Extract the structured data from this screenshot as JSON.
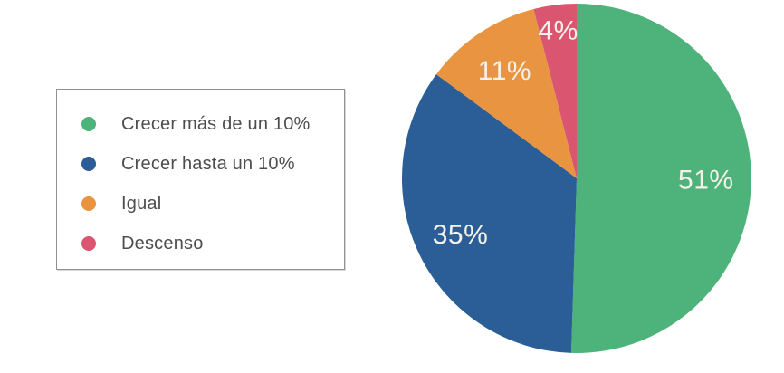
{
  "chart_data": {
    "type": "pie",
    "title": "",
    "legend_position": "left",
    "start_angle_deg": -90,
    "direction": "clockwise",
    "label_color": "#F6F2EA",
    "legend_text_color": "#4d4d4d",
    "slices": [
      {
        "label": "Crecer más de un 10%",
        "value": 51,
        "display": "51%",
        "color": "#4DB37A"
      },
      {
        "label": "Crecer hasta un 10%",
        "value": 35,
        "display": "35%",
        "color": "#2B5D96"
      },
      {
        "label": "Igual",
        "value": 11,
        "display": "11%",
        "color": "#E89440"
      },
      {
        "label": "Descenso",
        "value": 4,
        "display": "4%",
        "color": "#D95570"
      }
    ]
  }
}
